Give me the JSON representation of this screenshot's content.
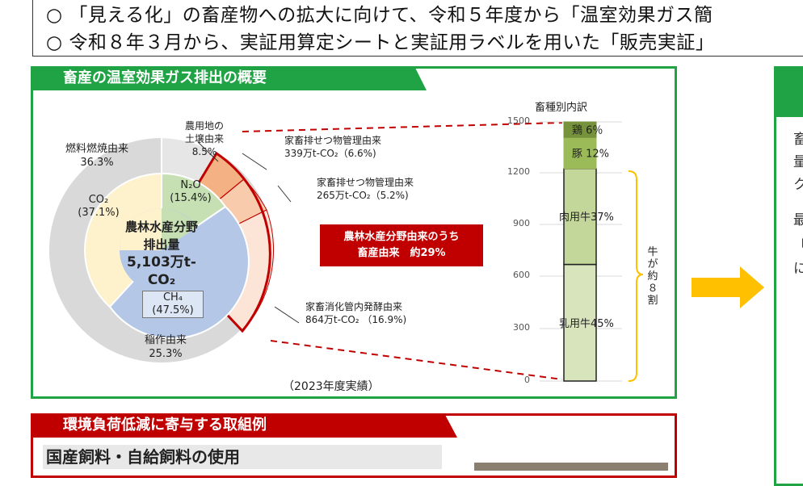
{
  "intro_lines": [
    "○ 「見える化」の畜産物への拡大に向けて、令和５年度から「温室効果ガス簡",
    "○ 令和８年３月から、実証用算定シートと実証用ラベルを用いた「販売実証」"
  ],
  "overview": {
    "title": "畜産の温室効果ガス排出の概要",
    "donut_center": {
      "line1": "農林水産分野",
      "line2": "排出量",
      "line3": "5,103万t-CO₂"
    },
    "inner_gases": [
      {
        "name": "N₂O",
        "pct": "(15.4%)"
      },
      {
        "name": "CO₂",
        "pct": "(37.1%)"
      },
      {
        "name": "CH₄",
        "pct": "(47.5%)"
      }
    ],
    "outer_sources": [
      {
        "name": "燃料燃焼由来",
        "pct": "36.3%"
      },
      {
        "name": "農用地の",
        "name2": "土壌由来",
        "pct": "8.5%"
      },
      {
        "name": "稲作由来",
        "pct": "25.3%"
      }
    ],
    "livestock_breakdown": [
      {
        "name": "家畜排せつ物管理由来",
        "value": "339万t-CO₂（6.6%)"
      },
      {
        "name": "家畜排せつ物管理由来",
        "value": "265万t-CO₂（5.2%)"
      },
      {
        "name": "家畜消化管内発酵由来",
        "value": "864万t-CO₂ （16.9%)"
      }
    ],
    "callout": {
      "line1": "農林水産分野由来のうち",
      "line2": "畜産由来　約29%"
    },
    "footnote": "（2023年度実績）",
    "colors": {
      "green": "#1fa344",
      "red": "#c00000",
      "co2": "#fdf2cc",
      "n2o": "#c6e0b4",
      "ch4": "#b4c7e7",
      "grey": "#d9d9d9",
      "orange1": "#f4b183",
      "orange2": "#f8cbad",
      "orange3": "#fce4d6"
    }
  },
  "bar_chart": {
    "title": "畜種別内訳",
    "axis_ticks": [
      "1500",
      "1200",
      "900",
      "600",
      "300",
      "0"
    ],
    "segments": [
      {
        "label": "鶏",
        "pct": "6％"
      },
      {
        "label": "豚",
        "pct": "12%"
      },
      {
        "label": "肉用牛",
        "pct": "37%"
      },
      {
        "label": "乳用牛",
        "pct": "45%"
      }
    ],
    "bracket_label": [
      "牛",
      "が",
      "約",
      "８",
      "割"
    ]
  },
  "chart_data": {
    "type": "bar",
    "title": "畜種別内訳",
    "categories": [
      "乳用牛",
      "肉用牛",
      "豚",
      "鶏"
    ],
    "values": [
      45,
      37,
      12,
      6
    ],
    "ylim": [
      0,
      1500
    ],
    "stacked": true
  },
  "right_panel_chars": [
    "畜",
    "量",
    "ク",
    "最",
    "「",
    "に"
  ],
  "bottom": {
    "title": "環境負荷低減に寄与する取組例",
    "subtitle": "国産飼料・自給飼料の使用"
  }
}
